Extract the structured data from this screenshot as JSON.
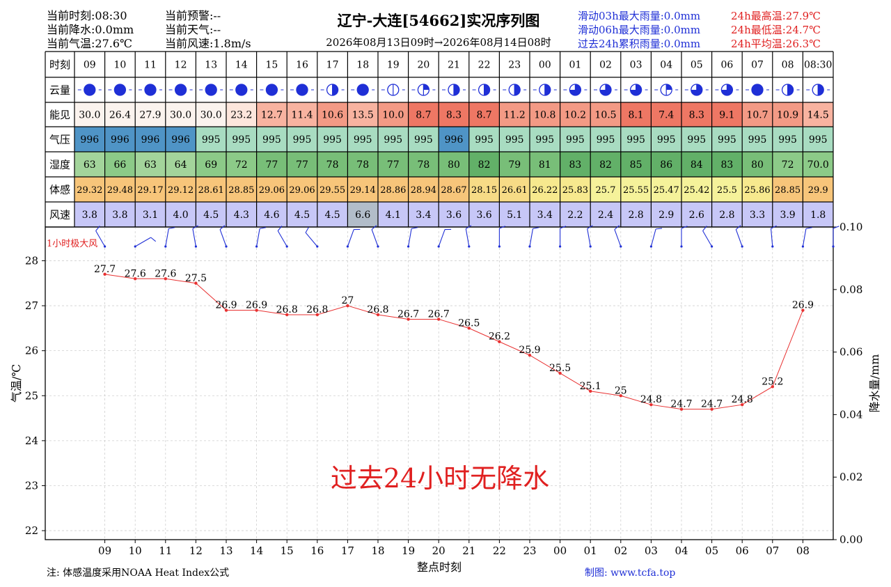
{
  "header": {
    "left": [
      {
        "text": "当前时刻:08:30"
      },
      {
        "text": "当前降水:0.0mm"
      },
      {
        "text": "当前气温:27.6℃"
      }
    ],
    "mid": [
      {
        "text": "当前预警:--"
      },
      {
        "text": "当前天气:--"
      },
      {
        "text": "当前风速:1.8m/s"
      }
    ],
    "title": "辽宁-大连[54662]实况序列图",
    "subtitle": "2026年08月13日09时→2026年08月14日08时",
    "rain_stats": [
      {
        "text": "滑动03h最大雨量:0.0mm"
      },
      {
        "text": "滑动06h最大雨量:0.0mm"
      },
      {
        "text": "过去24h累积雨量:0.0mm"
      }
    ],
    "temp_stats": [
      {
        "text": "24h最高温:27.9℃"
      },
      {
        "text": "24h最低温:24.7℃"
      },
      {
        "text": "24h平均温:26.3℃"
      }
    ],
    "rain_color": "#1f2fd6",
    "temp_color": "#e02020"
  },
  "table": {
    "row_labels": [
      "时刻",
      "云量",
      "能见",
      "气压",
      "湿度",
      "体感",
      "风速"
    ],
    "hours": [
      "09",
      "10",
      "11",
      "12",
      "13",
      "14",
      "15",
      "16",
      "17",
      "18",
      "19",
      "20",
      "21",
      "22",
      "23",
      "00",
      "01",
      "02",
      "03",
      "04",
      "05",
      "06",
      "07",
      "08",
      "08:30"
    ],
    "cloud_cover": [
      1,
      1,
      1,
      1,
      1,
      1,
      1,
      1,
      0.5,
      1,
      0,
      0.25,
      0.5,
      0.5,
      0.5,
      0.5,
      0.75,
      0.75,
      0.75,
      0.25,
      0.75,
      0.75,
      1,
      0.5,
      0.5
    ],
    "visibility": [
      "30.0",
      "26.4",
      "27.9",
      "30.0",
      "30.0",
      "23.2",
      "12.7",
      "11.4",
      "10.6",
      "13.5",
      "10.0",
      "8.7",
      "8.3",
      "8.7",
      "11.2",
      "10.8",
      "10.2",
      "10.5",
      "8.1",
      "7.4",
      "8.3",
      "9.1",
      "10.7",
      "10.9",
      "14.5"
    ],
    "pressure": [
      "996",
      "996",
      "996",
      "996",
      "995",
      "995",
      "995",
      "995",
      "995",
      "995",
      "995",
      "995",
      "996",
      "995",
      "995",
      "995",
      "995",
      "995",
      "995",
      "995",
      "995",
      "995",
      "995",
      "995",
      "995"
    ],
    "humidity": [
      "63",
      "66",
      "63",
      "64",
      "69",
      "72",
      "77",
      "77",
      "78",
      "78",
      "77",
      "78",
      "80",
      "82",
      "79",
      "81",
      "83",
      "82",
      "85",
      "86",
      "84",
      "83",
      "80",
      "72",
      "70.0"
    ],
    "feels_like": [
      "29.32",
      "29.48",
      "29.17",
      "29.12",
      "28.61",
      "28.85",
      "29.06",
      "29.06",
      "29.55",
      "29.14",
      "28.86",
      "28.94",
      "28.67",
      "28.15",
      "26.61",
      "26.22",
      "25.83",
      "25.7",
      "25.55",
      "25.47",
      "25.42",
      "25.5",
      "25.86",
      "28.85",
      "29.9"
    ],
    "wind_speed": [
      "3.8",
      "3.8",
      "3.1",
      "4.0",
      "4.5",
      "4.3",
      "4.6",
      "4.5",
      "4.5",
      "6.6",
      "4.1",
      "3.4",
      "3.6",
      "3.6",
      "5.1",
      "3.4",
      "2.2",
      "2.4",
      "2.8",
      "2.9",
      "2.6",
      "2.8",
      "3.3",
      "3.9",
      "1.8"
    ]
  },
  "gust_label": "1小时极大风",
  "wind_dir_deg": [
    330,
    60,
    10,
    350,
    340,
    10,
    330,
    320,
    20,
    340,
    10,
    20,
    350,
    0,
    10,
    0,
    350,
    340,
    15,
    0,
    330,
    340,
    355,
    10,
    0
  ],
  "chart_data": {
    "type": "line",
    "x": [
      "09",
      "10",
      "11",
      "12",
      "13",
      "14",
      "15",
      "16",
      "17",
      "18",
      "19",
      "20",
      "21",
      "22",
      "23",
      "00",
      "01",
      "02",
      "03",
      "04",
      "05",
      "06",
      "07",
      "08"
    ],
    "series": [
      {
        "values": [
          27.7,
          27.6,
          27.6,
          27.5,
          26.9,
          26.9,
          26.8,
          26.8,
          27.0,
          26.8,
          26.7,
          26.7,
          26.5,
          26.2,
          25.9,
          25.5,
          25.1,
          25.0,
          24.8,
          24.7,
          24.7,
          24.8,
          25.2,
          26.9
        ],
        "color": "#e83030"
      }
    ],
    "xlabel": "整点时刻",
    "ylabel": "气温/℃",
    "ylabel_right": "降水量/mm",
    "ylim": [
      21.8,
      28.75
    ],
    "yticks": [
      "22",
      "23",
      "24",
      "25",
      "26",
      "27",
      "28"
    ],
    "ylim_right": [
      0.0,
      0.1
    ],
    "yticks_right": [
      "0.00",
      "0.02",
      "0.04",
      "0.06",
      "0.08",
      "0.10"
    ],
    "grid": true,
    "annotation": "过去24小时无降水"
  },
  "footer": {
    "note": "注: 体感温度采用NOAA Heat Index公式",
    "credit": "制图: www.tcfa.top"
  }
}
